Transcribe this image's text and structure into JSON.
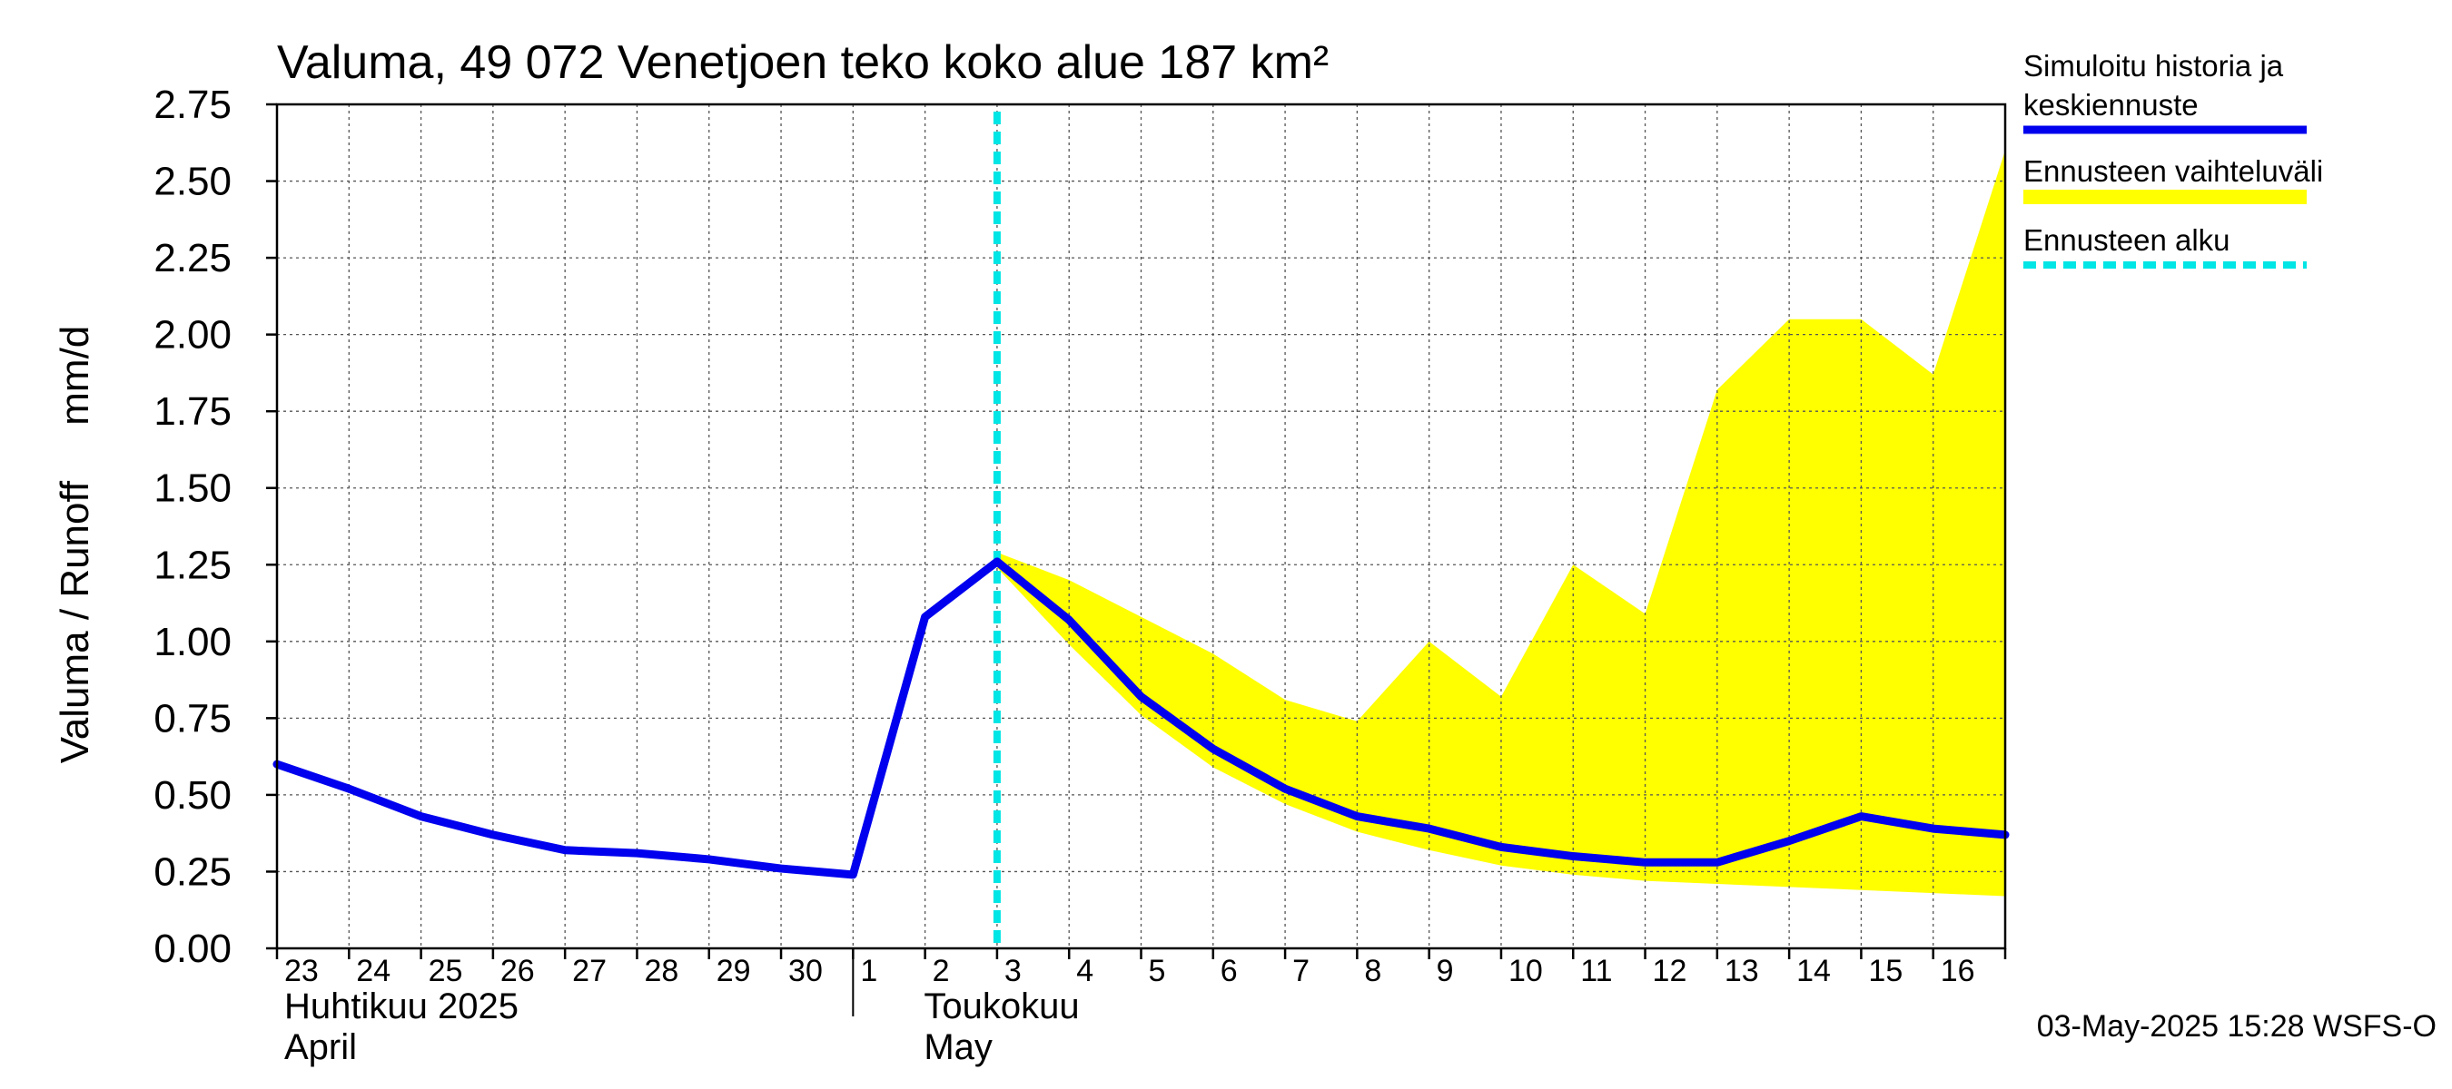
{
  "chart_data": {
    "type": "line",
    "title": "Valuma, 49 072 Venetjoen teko koko alue 187 km²",
    "ylabel": "Valuma / Runoff     mm/d",
    "ylim": [
      0,
      2.75
    ],
    "yticks": [
      "0.00",
      "0.25",
      "0.50",
      "0.75",
      "1.00",
      "1.25",
      "1.50",
      "1.75",
      "2.00",
      "2.25",
      "2.50",
      "2.75"
    ],
    "x_start": "2025-04-23",
    "x_end": "2025-05-17",
    "day_labels": [
      "23",
      "24",
      "25",
      "26",
      "27",
      "28",
      "29",
      "30",
      "1",
      "2",
      "3",
      "4",
      "5",
      "6",
      "7",
      "8",
      "9",
      "10",
      "11",
      "12",
      "13",
      "14",
      "15",
      "16"
    ],
    "month_labels": [
      {
        "fi": "Huhtikuu  2025",
        "en": "April"
      },
      {
        "fi": "Toukokuu",
        "en": "May"
      }
    ],
    "forecast_start": "2025-05-03",
    "grid": true,
    "series": [
      {
        "name": "Simuloitu historia ja keskiennuste",
        "color": "#0000ee",
        "x": [
          "2025-04-23",
          "2025-04-24",
          "2025-04-25",
          "2025-04-26",
          "2025-04-27",
          "2025-04-28",
          "2025-04-29",
          "2025-04-30",
          "2025-05-01",
          "2025-05-02",
          "2025-05-03",
          "2025-05-04",
          "2025-05-05",
          "2025-05-06",
          "2025-05-07",
          "2025-05-08",
          "2025-05-09",
          "2025-05-10",
          "2025-05-11",
          "2025-05-12",
          "2025-05-13",
          "2025-05-14",
          "2025-05-15",
          "2025-05-16",
          "2025-05-17"
        ],
        "values": [
          0.6,
          0.52,
          0.43,
          0.37,
          0.32,
          0.31,
          0.29,
          0.26,
          0.24,
          1.08,
          1.26,
          1.07,
          0.82,
          0.65,
          0.52,
          0.43,
          0.39,
          0.33,
          0.3,
          0.28,
          0.28,
          0.35,
          0.43,
          0.39,
          0.37
        ]
      }
    ],
    "band": {
      "name": "Ennusteen vaihteluväli",
      "color": "#ffff00",
      "x": [
        "2025-05-03",
        "2025-05-04",
        "2025-05-05",
        "2025-05-06",
        "2025-05-07",
        "2025-05-08",
        "2025-05-09",
        "2025-05-10",
        "2025-05-11",
        "2025-05-12",
        "2025-05-13",
        "2025-05-14",
        "2025-05-15",
        "2025-05-16",
        "2025-05-17"
      ],
      "upper": [
        1.29,
        1.2,
        1.08,
        0.96,
        0.81,
        0.74,
        1.0,
        0.82,
        1.25,
        1.09,
        1.82,
        2.05,
        2.05,
        1.87,
        2.6
      ],
      "lower": [
        1.24,
        0.99,
        0.76,
        0.59,
        0.47,
        0.38,
        0.32,
        0.27,
        0.24,
        0.22,
        0.21,
        0.2,
        0.19,
        0.18,
        0.17
      ]
    },
    "legend": {
      "position": "right",
      "items": [
        {
          "label_lines": [
            "Simuloitu historia ja",
            "keskiennuste"
          ],
          "color": "#0000ee",
          "style": "solid"
        },
        {
          "label_lines": [
            "Ennusteen vaihteluväli"
          ],
          "color": "#ffff00",
          "style": "band"
        },
        {
          "label_lines": [
            "Ennusteen alku"
          ],
          "color": "#00e5e5",
          "style": "dashed"
        }
      ]
    },
    "footer": "03-May-2025 15:28 WSFS-O"
  }
}
